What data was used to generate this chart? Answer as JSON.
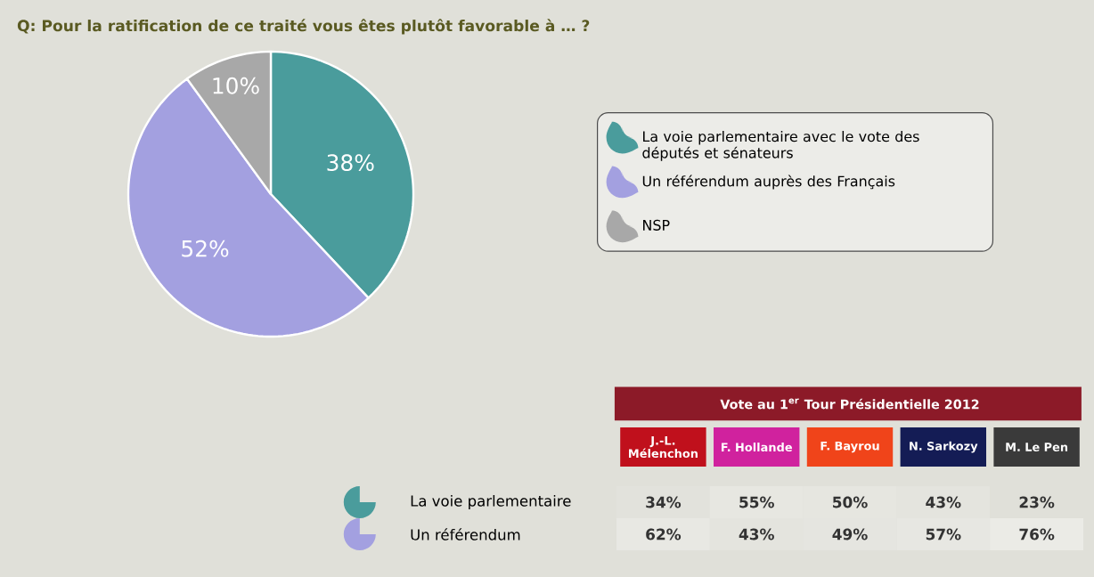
{
  "chart_data": [
    {
      "type": "pie",
      "title": "Q: Pour la ratification de ce traité vous êtes plutôt favorable à … ?",
      "categories": [
        "La voie parlementaire avec le vote des députés et sénateurs",
        "Un référendum auprès des Français",
        "NSP"
      ],
      "values": [
        38,
        52,
        10
      ],
      "colors": [
        "#4a9c9c",
        "#a3a0e0",
        "#a8a8a8"
      ],
      "value_labels": [
        "38%",
        "52%",
        "10%"
      ],
      "legend": "right"
    },
    {
      "type": "heatmap",
      "title": "Vote au 1$^{er}$ Tour Présidentielle 2012",
      "categories": [
        "J.-L. Mélenchon",
        "F. Hollande",
        "F. Bayrou",
        "N. Sarkozy",
        "M. Le Pen"
      ],
      "y_categories": [
        "La voie parlementaire",
        "Un référendum"
      ],
      "cells": [
        [
          34,
          55,
          50,
          43,
          23
        ],
        [
          62,
          43,
          49,
          57,
          76
        ]
      ],
      "cell_labels": [
        [
          "34%",
          "55%",
          "50%",
          "43%",
          "23%"
        ],
        [
          "62%",
          "43%",
          "49%",
          "57%",
          "76%"
        ]
      ]
    }
  ]
}
